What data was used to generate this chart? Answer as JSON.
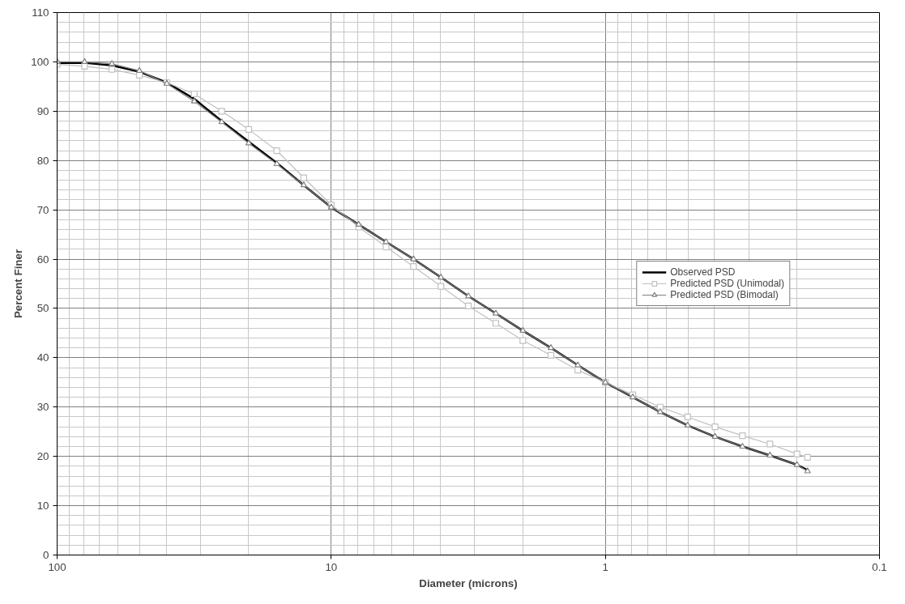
{
  "chart_data": {
    "type": "line",
    "xlabel": "Diameter (microns)",
    "ylabel": "Percent Finer",
    "log": "x",
    "xlim": [
      100,
      0.1
    ],
    "xticks": [
      100,
      10,
      1,
      0.1
    ],
    "ylim": [
      0,
      110
    ],
    "yticks": [
      0,
      10,
      20,
      30,
      40,
      50,
      60,
      70,
      80,
      90,
      100,
      110
    ],
    "grid": true,
    "legend": "right",
    "x": [
      100,
      79.4,
      63.1,
      50.1,
      39.8,
      31.6,
      25.1,
      20,
      15.8,
      12.6,
      10,
      7.94,
      6.31,
      5.01,
      3.98,
      3.16,
      2.51,
      2,
      1.58,
      1.26,
      1,
      0.794,
      0.631,
      0.501,
      0.398,
      0.316,
      0.251,
      0.2,
      0.183
    ],
    "series": [
      {
        "name": "Observed PSD",
        "color": "#000000",
        "marker": "none",
        "values": [
          99.8,
          99.8,
          99.3,
          98,
          95.8,
          92.5,
          88,
          83.8,
          79.5,
          75,
          70.5,
          67,
          63.5,
          60,
          56.3,
          52.5,
          49,
          45.5,
          42,
          38.5,
          35,
          32,
          29,
          26.3,
          24,
          22,
          20.2,
          18.3,
          17.2
        ]
      },
      {
        "name": "Predicted PSD (Unimodal)",
        "color": "#c0c0c0",
        "marker": "square",
        "values": [
          99.5,
          99.1,
          98.5,
          97.3,
          95.8,
          93.5,
          90,
          86.3,
          82,
          76.5,
          71,
          66.5,
          62.5,
          58.5,
          54.5,
          50.5,
          47,
          43.5,
          40.5,
          37.5,
          35,
          32.5,
          30,
          28,
          26,
          24.2,
          22.5,
          20.5,
          19.8
        ]
      },
      {
        "name": "Predicted PSD (Bimodal)",
        "color": "#808080",
        "marker": "triangle",
        "values": [
          100,
          100,
          99.6,
          98.2,
          95.6,
          92,
          87.8,
          83.5,
          79.3,
          75,
          70.5,
          67,
          63.5,
          60,
          56.3,
          52.5,
          49,
          45.5,
          42,
          38.5,
          35,
          32,
          29,
          26.3,
          24,
          22,
          20.2,
          18.3,
          17
        ]
      }
    ]
  }
}
